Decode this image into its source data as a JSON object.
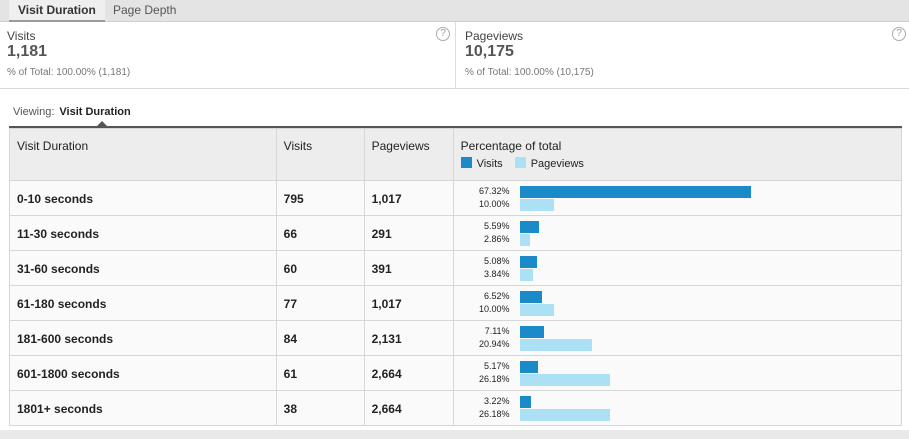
{
  "tabs": [
    {
      "label": "Visit Duration",
      "active": true
    },
    {
      "label": "Page Depth",
      "active": false
    }
  ],
  "scorecards": [
    {
      "label": "Visits",
      "value": "1,181",
      "sub": "% of Total: 100.00% (1,181)",
      "help": "?"
    },
    {
      "label": "Pageviews",
      "value": "10,175",
      "sub": "% of Total: 100.00% (10,175)",
      "help": "?"
    }
  ],
  "viewing": {
    "label": "Viewing:",
    "selected": "Visit Duration"
  },
  "table": {
    "headers": {
      "duration": "Visit Duration",
      "visits": "Visits",
      "pageviews": "Pageviews",
      "percentage": "Percentage of total"
    },
    "legend": [
      {
        "label": "Visits",
        "color": "#1a8ac8"
      },
      {
        "label": "Pageviews",
        "color": "#ace0f5"
      }
    ],
    "rows": [
      {
        "duration": "0-10 seconds",
        "visits": "795",
        "pageviews": "1,017",
        "visits_pct": "67.32%",
        "pageviews_pct": "10.00%",
        "visits_frac": 0.6732,
        "pageviews_frac": 0.1
      },
      {
        "duration": "11-30 seconds",
        "visits": "66",
        "pageviews": "291",
        "visits_pct": "5.59%",
        "pageviews_pct": "2.86%",
        "visits_frac": 0.0559,
        "pageviews_frac": 0.0286
      },
      {
        "duration": "31-60 seconds",
        "visits": "60",
        "pageviews": "391",
        "visits_pct": "5.08%",
        "pageviews_pct": "3.84%",
        "visits_frac": 0.0508,
        "pageviews_frac": 0.0384
      },
      {
        "duration": "61-180 seconds",
        "visits": "77",
        "pageviews": "1,017",
        "visits_pct": "6.52%",
        "pageviews_pct": "10.00%",
        "visits_frac": 0.0652,
        "pageviews_frac": 0.1
      },
      {
        "duration": "181-600 seconds",
        "visits": "84",
        "pageviews": "2,131",
        "visits_pct": "7.11%",
        "pageviews_pct": "20.94%",
        "visits_frac": 0.0711,
        "pageviews_frac": 0.2094
      },
      {
        "duration": "601-1800 seconds",
        "visits": "61",
        "pageviews": "2,664",
        "visits_pct": "5.17%",
        "pageviews_pct": "26.18%",
        "visits_frac": 0.0517,
        "pageviews_frac": 0.2618
      },
      {
        "duration": "1801+ seconds",
        "visits": "38",
        "pageviews": "2,664",
        "visits_pct": "3.22%",
        "pageviews_pct": "26.18%",
        "visits_frac": 0.0322,
        "pageviews_frac": 0.2618
      }
    ]
  }
}
